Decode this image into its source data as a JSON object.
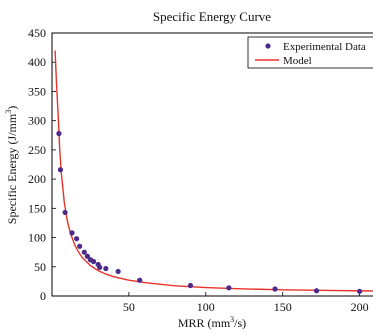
{
  "chart_data": {
    "type": "scatter",
    "title": "Specific Energy Curve",
    "xlabel": "MRR (mm",
    "xlabel_sup": "3",
    "xlabel_tail": "/s)",
    "ylabel": "Specific Energy (J/mm",
    "ylabel_sup": "3",
    "ylabel_tail": ")",
    "xlim": [
      0,
      210
    ],
    "ylim": [
      0,
      450
    ],
    "x_ticks": [
      50,
      100,
      150,
      200
    ],
    "y_ticks": [
      0,
      50,
      100,
      150,
      200,
      250,
      300,
      350,
      400,
      450
    ],
    "grid": false,
    "legend_position": "top-right",
    "series": [
      {
        "name": "Experimental Data",
        "kind": "markers",
        "color": "#4b2a8a",
        "x": [
          4.5,
          5.5,
          8.5,
          13,
          16,
          18,
          21,
          23,
          25,
          27,
          30,
          31,
          35,
          43,
          57,
          90,
          115,
          145,
          172,
          200
        ],
        "y": [
          278,
          216,
          143,
          108,
          98,
          85,
          75,
          68,
          62,
          59,
          54,
          49,
          47,
          42,
          27,
          18,
          14,
          12,
          9,
          8
        ]
      },
      {
        "name": "Model",
        "kind": "line",
        "color": "#e8332a",
        "x": [
          2,
          3,
          4,
          5,
          6,
          8,
          10,
          12,
          15,
          18,
          20,
          25,
          30,
          35,
          40,
          50,
          60,
          80,
          100,
          120,
          150,
          180,
          210
        ],
        "y": [
          420,
          360,
          310,
          252,
          212,
          160,
          128,
          107,
          86,
          72,
          65,
          52,
          43.5,
          37.5,
          33,
          27,
          23,
          17.5,
          14.5,
          12.5,
          10.5,
          9.5,
          8.5
        ]
      }
    ]
  }
}
